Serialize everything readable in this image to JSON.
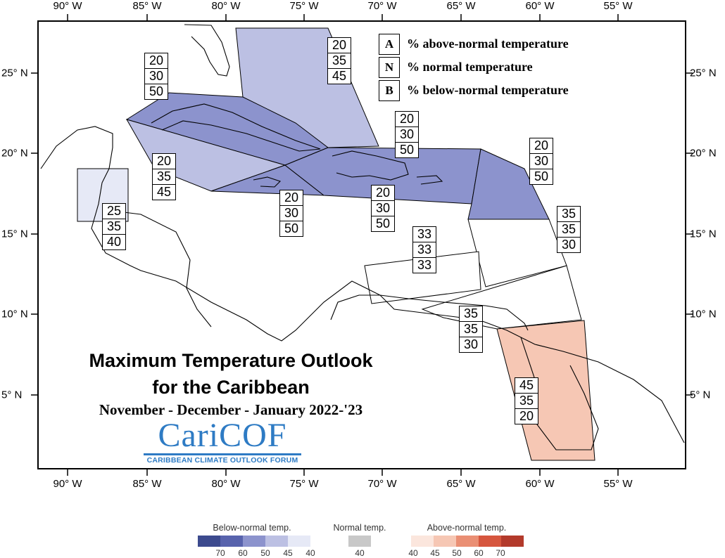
{
  "map": {
    "lon_labels": [
      "90° W",
      "85° W",
      "80° W",
      "75° W",
      "70° W",
      "65° W",
      "60° W",
      "55° W"
    ],
    "lat_labels": [
      "25° N",
      "20° N",
      "15° N",
      "10° N",
      "5° N"
    ],
    "colors": {
      "below_50": "#8c93cd",
      "below_45": "#bcc0e3",
      "below_40": "#e6e9f6",
      "above_45": "#f6c7b4",
      "outline": "#000000"
    },
    "regions": [
      {
        "id": "bahamas",
        "values": [
          "20",
          "35",
          "45"
        ]
      },
      {
        "id": "cuba",
        "values": [
          "20",
          "30",
          "50"
        ]
      },
      {
        "id": "cayman",
        "values": [
          "20",
          "35",
          "45"
        ]
      },
      {
        "id": "belize",
        "values": [
          "25",
          "35",
          "40"
        ]
      },
      {
        "id": "jamaica",
        "values": [
          "20",
          "30",
          "50"
        ]
      },
      {
        "id": "hispaniola-north",
        "values": [
          "20",
          "30",
          "50"
        ]
      },
      {
        "id": "hispaniola-south",
        "values": [
          "20",
          "30",
          "50"
        ]
      },
      {
        "id": "leeward-islands",
        "values": [
          "20",
          "30",
          "50"
        ]
      },
      {
        "id": "windward-islands",
        "values": [
          "35",
          "35",
          "30"
        ]
      },
      {
        "id": "abc-islands",
        "values": [
          "33",
          "33",
          "33"
        ]
      },
      {
        "id": "trinidad",
        "values": [
          "35",
          "35",
          "30"
        ]
      },
      {
        "id": "guianas",
        "values": [
          "45",
          "35",
          "20"
        ]
      }
    ]
  },
  "key": [
    {
      "letter": "A",
      "text": "% above-normal temperature"
    },
    {
      "letter": "N",
      "text": "% normal temperature"
    },
    {
      "letter": "B",
      "text": "% below-normal temperature"
    }
  ],
  "title": {
    "line1": "Maximum Temperature Outlook",
    "line2": "for the Caribbean",
    "season": "November - December - January 2022-'23"
  },
  "logo": {
    "wordmark": "CariCOF",
    "subtitle": "CARIBBEAN CLIMATE OUTLOOK FORUM"
  },
  "colorbar": {
    "below": {
      "title": "Below-normal temp.",
      "colors": [
        "#3c4a8e",
        "#5863ad",
        "#8c93cd",
        "#bcc0e3",
        "#e6e9f6"
      ],
      "ticks": [
        "70",
        "60",
        "50",
        "45",
        "40"
      ]
    },
    "normal": {
      "title": "Normal temp.",
      "colors": [
        "#c8c8c8"
      ],
      "ticks": [
        "40"
      ]
    },
    "above": {
      "title": "Above-normal temp.",
      "colors": [
        "#fbe6dd",
        "#f6c7b4",
        "#ea8f74",
        "#d6563e",
        "#b33a2b"
      ],
      "ticks": [
        "40",
        "45",
        "50",
        "60",
        "70"
      ]
    }
  }
}
